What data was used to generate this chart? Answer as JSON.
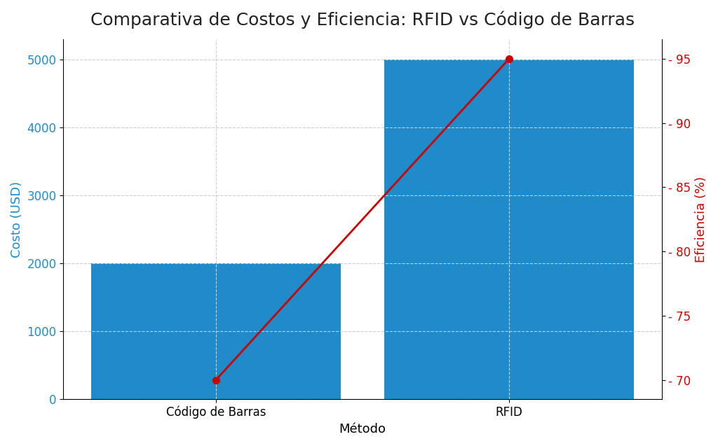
{
  "title": "Comparativa de Costos y Eficiencia: RFID vs Código de Barras",
  "categories": [
    "Código de Barras",
    "RFID"
  ],
  "costs": [
    2000,
    5000
  ],
  "efficiency": [
    70,
    95
  ],
  "bar_color": "#1f8bc8",
  "line_color": "#cc0000",
  "marker_color": "#cc0000",
  "xlabel": "Método",
  "ylabel_left": "Costo (USD)",
  "ylabel_right": "Eficiencia (%)",
  "ylim_left": [
    0,
    5300
  ],
  "ylim_right": [
    68.5,
    96.5
  ],
  "yticks_left": [
    0,
    1000,
    2000,
    3000,
    4000,
    5000
  ],
  "yticks_right": [
    70,
    75,
    80,
    85,
    90,
    95
  ],
  "title_fontsize": 18,
  "label_fontsize": 13,
  "tick_fontsize": 12,
  "background_color": "#ffffff",
  "bar_width": 0.85,
  "xlim": [
    -0.52,
    1.52
  ]
}
